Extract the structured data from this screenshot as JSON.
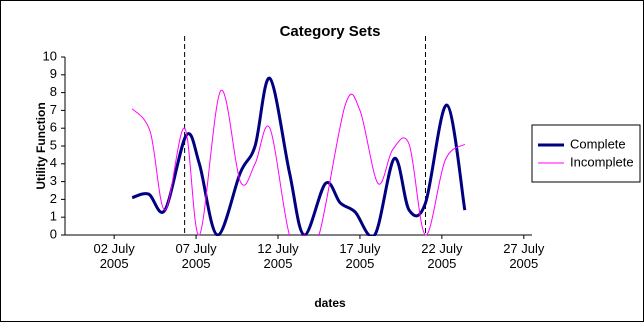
{
  "chart_data": {
    "type": "line",
    "title": "Category Sets",
    "x_label": "dates",
    "y_label": "Utility Function",
    "xlim": [
      -1,
      27.5
    ],
    "ylim": [
      0,
      10
    ],
    "xticks": [
      {
        "value": 2,
        "label": "02 July 2005"
      },
      {
        "value": 7,
        "label": "07 July 2005"
      },
      {
        "value": 12,
        "label": "12 July 2005"
      },
      {
        "value": 17,
        "label": "17 July 2005"
      },
      {
        "value": 22,
        "label": "22 July 2005"
      },
      {
        "value": 27,
        "label": "27 July 2005"
      }
    ],
    "yticks": [
      0,
      1,
      2,
      3,
      4,
      5,
      6,
      7,
      8,
      9,
      10
    ],
    "vlines": [
      6.3,
      21.0
    ],
    "smooth": true,
    "series": [
      {
        "name": "Complete",
        "color": "#000080",
        "width": 3,
        "x": [
          3.1,
          4.1,
          5.1,
          6.4,
          7.2,
          8.3,
          9.7,
          10.6,
          11.5,
          12.7,
          13.6,
          14.9,
          15.8,
          16.7,
          17.9,
          19.1,
          20.0,
          21.0,
          22.3,
          23.4
        ],
        "values": [
          2.1,
          2.3,
          1.4,
          5.6,
          4.0,
          0,
          3.5,
          5.0,
          8.8,
          3.5,
          0,
          2.9,
          1.8,
          1.3,
          0,
          4.3,
          1.4,
          1.8,
          7.3,
          1.4
        ]
      },
      {
        "name": "Incomplete",
        "color": "#ff00ff",
        "width": 1,
        "x": [
          3.1,
          4.2,
          5.1,
          6.3,
          7.2,
          8.5,
          9.7,
          10.6,
          11.5,
          12.7,
          13.6,
          14.5,
          16.1,
          17.0,
          18.1,
          19.0,
          20.0,
          21.0,
          22.2,
          23.4
        ],
        "values": [
          7.1,
          5.8,
          1.4,
          6.0,
          0,
          8.1,
          3.0,
          4.0,
          6.0,
          0,
          0,
          0,
          7.3,
          7.0,
          2.9,
          4.8,
          5.1,
          0,
          4.2,
          5.1
        ]
      }
    ]
  }
}
